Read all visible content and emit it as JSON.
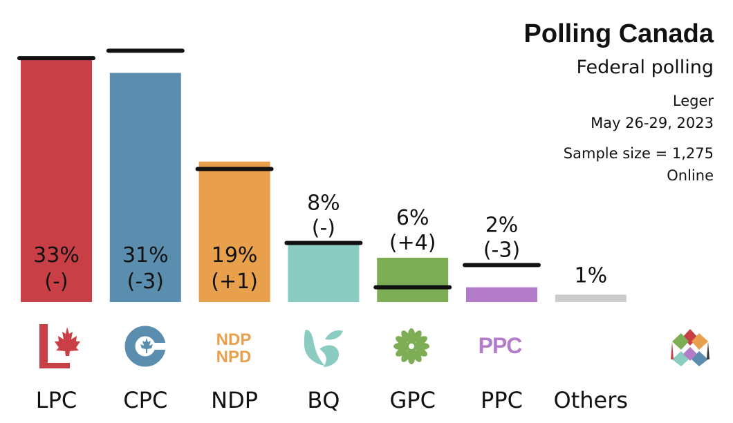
{
  "header": {
    "title": "Polling Canada",
    "subtitle": "Federal polling",
    "pollster": "Leger",
    "dates": "May 26-29, 2023",
    "sample": "Sample size = 1,275",
    "method": "Online"
  },
  "chart_data": {
    "type": "bar",
    "title": "Polling Canada",
    "subtitle": "Federal polling",
    "categories": [
      "LPC",
      "CPC",
      "NDP",
      "BQ",
      "GPC",
      "PPC",
      "Others"
    ],
    "values": [
      33,
      31,
      19,
      8,
      6,
      2,
      1
    ],
    "previous_values": [
      33,
      34,
      18,
      8,
      2,
      5,
      null
    ],
    "labels": [
      "33%",
      "31%",
      "19%",
      "8%",
      "6%",
      "2%",
      "1%"
    ],
    "changes": [
      "(-)",
      "(-3)",
      "(+1)",
      "(-)",
      "(+4)",
      "(-3)",
      ""
    ],
    "colors": [
      "#c84045",
      "#5b8eae",
      "#e8a04c",
      "#8acbc2",
      "#7dae55",
      "#b37cc8",
      "#cccccc"
    ],
    "ylim": [
      0,
      36
    ],
    "grid": false,
    "xlabel": "",
    "ylabel": ""
  },
  "logos": {
    "ndp_top": "NDP",
    "ndp_bottom": "NPD",
    "ppc": "PPC"
  },
  "icons": [
    "lpc-maple-leaf-icon",
    "cpc-c-leaf-icon",
    "ndp-logo-icon",
    "bq-logo-icon",
    "gpc-flower-icon",
    "ppc-logo-icon",
    "polling-canada-logo-icon"
  ]
}
